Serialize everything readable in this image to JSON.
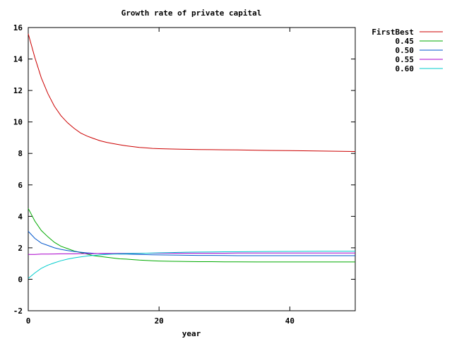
{
  "chart_data": {
    "type": "line",
    "title": "Growth rate of private capital",
    "xlabel": "year",
    "ylabel": "",
    "xlim": [
      0,
      50
    ],
    "ylim": [
      -2,
      16
    ],
    "x_ticks": [
      "0",
      "20",
      "40"
    ],
    "y_ticks": [
      "-2",
      "0",
      "2",
      "4",
      "6",
      "8",
      "10",
      "12",
      "14",
      "16"
    ],
    "grid": false,
    "legend_position": "top-right, outside plot",
    "x": [
      0,
      1,
      2,
      3,
      4,
      5,
      6,
      7,
      8,
      9,
      10,
      11,
      12,
      13,
      14,
      15,
      16,
      17,
      18,
      19,
      20,
      22,
      24,
      26,
      28,
      30,
      32,
      35,
      40,
      45,
      50
    ],
    "series": [
      {
        "name": "FirstBest",
        "color": "#cc0000",
        "values": [
          15.6,
          14.1,
          12.8,
          11.8,
          11.0,
          10.4,
          9.95,
          9.6,
          9.3,
          9.1,
          8.95,
          8.8,
          8.7,
          8.62,
          8.55,
          8.48,
          8.43,
          8.38,
          8.35,
          8.32,
          8.3,
          8.28,
          8.26,
          8.25,
          8.24,
          8.23,
          8.22,
          8.2,
          8.18,
          8.15,
          8.12
        ]
      },
      {
        "name": "0.45",
        "color": "#00aa00",
        "values": [
          4.5,
          3.7,
          3.1,
          2.7,
          2.35,
          2.1,
          1.95,
          1.8,
          1.7,
          1.6,
          1.5,
          1.45,
          1.4,
          1.35,
          1.3,
          1.28,
          1.25,
          1.22,
          1.2,
          1.18,
          1.16,
          1.14,
          1.13,
          1.12,
          1.12,
          1.11,
          1.11,
          1.1,
          1.1,
          1.1,
          1.1
        ]
      },
      {
        "name": "0.50",
        "color": "#0055cc",
        "values": [
          3.05,
          2.6,
          2.3,
          2.15,
          2.0,
          1.9,
          1.83,
          1.77,
          1.72,
          1.68,
          1.65,
          1.63,
          1.62,
          1.61,
          1.6,
          1.6,
          1.59,
          1.58,
          1.57,
          1.56,
          1.55,
          1.54,
          1.53,
          1.52,
          1.52,
          1.51,
          1.5,
          1.5,
          1.5,
          1.5,
          1.5
        ]
      },
      {
        "name": "0.55",
        "color": "#aa00cc",
        "values": [
          1.58,
          1.58,
          1.6,
          1.6,
          1.61,
          1.62,
          1.62,
          1.62,
          1.63,
          1.63,
          1.63,
          1.64,
          1.64,
          1.64,
          1.65,
          1.65,
          1.65,
          1.65,
          1.66,
          1.66,
          1.66,
          1.66,
          1.66,
          1.66,
          1.66,
          1.66,
          1.67,
          1.67,
          1.67,
          1.67,
          1.67
        ]
      },
      {
        "name": "0.60",
        "color": "#00cccc",
        "values": [
          0.05,
          0.4,
          0.7,
          0.9,
          1.05,
          1.18,
          1.28,
          1.36,
          1.42,
          1.48,
          1.52,
          1.55,
          1.58,
          1.6,
          1.62,
          1.63,
          1.64,
          1.65,
          1.66,
          1.67,
          1.68,
          1.7,
          1.72,
          1.73,
          1.74,
          1.75,
          1.75,
          1.76,
          1.77,
          1.78,
          1.78
        ]
      }
    ]
  }
}
